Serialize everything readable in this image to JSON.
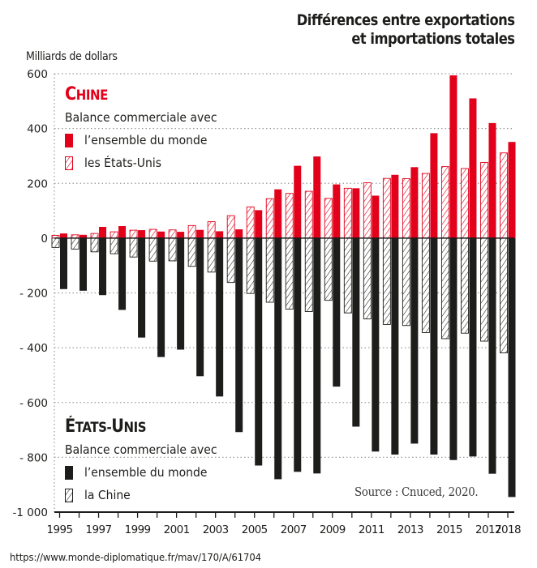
{
  "header": {
    "title_line1": "Différences entre exportations",
    "title_line2": "et importations totales",
    "unit_label": "Milliards de dollars"
  },
  "legend_china": {
    "country_initial": "C",
    "country_rest": "HINE",
    "subtitle": "Balance commerciale avec",
    "item_world": "l’ensemble du monde",
    "item_partner": "les États-Unis",
    "color": "#e2001a"
  },
  "legend_us": {
    "country_initial_1": "É",
    "country_rest_1": "TATS-",
    "country_initial_2": "U",
    "country_rest_2": "NIS",
    "subtitle": "Balance commerciale avec",
    "item_world": "l’ensemble du monde",
    "item_partner": "la Chine",
    "color": "#1d1d1b"
  },
  "source": "Source : Cnuced, 2020.",
  "footer_url": "https://www.monde-diplomatique.fr/mav/170/A/61704",
  "chart_data": {
    "type": "bar",
    "title": "Différences entre exportations et importations totales",
    "xlabel": "",
    "ylabel": "Milliards de dollars",
    "ylim": [
      -1000,
      600
    ],
    "yticks": [
      600,
      400,
      200,
      0,
      -200,
      -400,
      -600,
      -800,
      -1000
    ],
    "ytick_labels": [
      "600",
      "400",
      "200",
      "0",
      "- 200",
      "- 400",
      "- 600",
      "- 800",
      "-1 000"
    ],
    "grid": "horizontal dotted",
    "legend": "inset top-left (Chine) and bottom-left (États-Unis)",
    "categories": [
      "1995",
      "1996",
      "1997",
      "1998",
      "1999",
      "2000",
      "2001",
      "2002",
      "2003",
      "2004",
      "2005",
      "2006",
      "2007",
      "2008",
      "2009",
      "2010",
      "2011",
      "2012",
      "2013",
      "2014",
      "2015",
      "2016",
      "2017",
      "2018"
    ],
    "xtick_labels": [
      "1995",
      "1997",
      "1999",
      "2001",
      "2003",
      "2005",
      "2007",
      "2009",
      "2011",
      "2013",
      "2015",
      "2017",
      "2018"
    ],
    "series": [
      {
        "name": "Chine – balance avec les États-Unis",
        "style": "hatched-red",
        "color": "#e2001a",
        "values": [
          10,
          12,
          17,
          23,
          29,
          32,
          30,
          46,
          60,
          82,
          114,
          144,
          163,
          171,
          145,
          182,
          202,
          218,
          217,
          236,
          261,
          254,
          276,
          311
        ]
      },
      {
        "name": "Chine – balance avec l’ensemble du monde",
        "style": "solid-red",
        "color": "#e2001a",
        "values": [
          17,
          12,
          41,
          44,
          29,
          24,
          23,
          30,
          25,
          32,
          102,
          178,
          264,
          298,
          196,
          182,
          155,
          231,
          259,
          383,
          594,
          510,
          420,
          351
        ]
      },
      {
        "name": "États-Unis – balance avec la Chine",
        "style": "hatched-black",
        "color": "#1d1d1b",
        "values": [
          -34,
          -40,
          -50,
          -57,
          -69,
          -84,
          -83,
          -103,
          -124,
          -162,
          -202,
          -234,
          -259,
          -268,
          -227,
          -273,
          -295,
          -315,
          -319,
          -345,
          -367,
          -347,
          -376,
          -419
        ]
      },
      {
        "name": "États-Unis – balance avec l’ensemble du monde",
        "style": "solid-black",
        "color": "#1d1d1b",
        "values": [
          -186,
          -192,
          -208,
          -262,
          -363,
          -434,
          -407,
          -504,
          -578,
          -708,
          -830,
          -880,
          -853,
          -859,
          -542,
          -688,
          -779,
          -790,
          -750,
          -790,
          -810,
          -797,
          -860,
          -945
        ]
      }
    ]
  }
}
